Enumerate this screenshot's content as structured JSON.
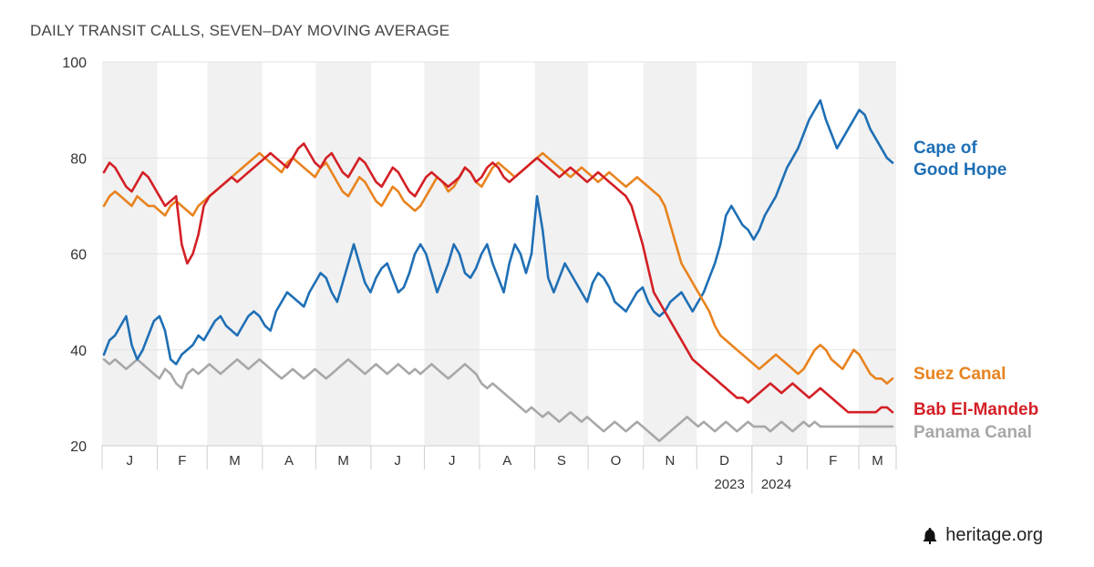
{
  "chart_data": {
    "type": "line",
    "title": "DAILY TRANSIT CALLS, SEVEN–DAY MOVING AVERAGE",
    "ylim": [
      20,
      100
    ],
    "yticks": [
      "100",
      "80",
      "60",
      "40",
      "20"
    ],
    "yticks_values": [
      100,
      80,
      60,
      40,
      20
    ],
    "months": [
      "J",
      "F",
      "M",
      "A",
      "M",
      "J",
      "J",
      "A",
      "S",
      "O",
      "N",
      "D",
      "J",
      "F",
      "M"
    ],
    "month_days": [
      31,
      28,
      31,
      30,
      31,
      30,
      31,
      31,
      30,
      31,
      30,
      31,
      31,
      29,
      21
    ],
    "year_labels": [
      "2023",
      "2024"
    ],
    "series": [
      {
        "name": "Cape of Good Hope",
        "label_lines": [
          "Cape of",
          "Good Hope"
        ],
        "color": "#1f6fb5",
        "values": [
          39,
          42,
          43,
          45,
          47,
          41,
          38,
          40,
          43,
          46,
          47,
          44,
          38,
          37,
          39,
          40,
          41,
          43,
          42,
          44,
          46,
          47,
          45,
          44,
          43,
          45,
          47,
          48,
          47,
          45,
          44,
          48,
          50,
          52,
          51,
          50,
          49,
          52,
          54,
          56,
          55,
          52,
          50,
          54,
          58,
          62,
          58,
          54,
          52,
          55,
          57,
          58,
          55,
          52,
          53,
          56,
          60,
          62,
          60,
          56,
          52,
          55,
          58,
          62,
          60,
          56,
          55,
          57,
          60,
          62,
          58,
          55,
          52,
          58,
          62,
          60,
          56,
          60,
          72,
          65,
          55,
          52,
          55,
          58,
          56,
          54,
          52,
          50,
          54,
          56,
          55,
          53,
          50,
          49,
          48,
          50,
          52,
          53,
          50,
          48,
          47,
          48,
          50,
          51,
          52,
          50,
          48,
          50,
          52,
          55,
          58,
          62,
          68,
          70,
          68,
          66,
          65,
          63,
          65,
          68,
          70,
          72,
          75,
          78,
          80,
          82,
          85,
          88,
          90,
          92,
          88,
          85,
          82,
          84,
          86,
          88,
          90,
          89,
          86,
          84,
          82,
          80,
          79
        ]
      },
      {
        "name": "Suez Canal",
        "label_lines": [
          "Suez Canal"
        ],
        "color": "#e8831f",
        "values": [
          70,
          72,
          73,
          72,
          71,
          70,
          72,
          71,
          70,
          70,
          69,
          68,
          70,
          71,
          70,
          69,
          68,
          70,
          71,
          72,
          73,
          74,
          75,
          76,
          77,
          78,
          79,
          80,
          81,
          80,
          79,
          78,
          77,
          79,
          80,
          79,
          78,
          77,
          76,
          78,
          79,
          77,
          75,
          73,
          72,
          74,
          76,
          75,
          73,
          71,
          70,
          72,
          74,
          73,
          71,
          70,
          69,
          70,
          72,
          74,
          76,
          75,
          73,
          74,
          76,
          78,
          77,
          75,
          74,
          76,
          78,
          79,
          78,
          77,
          76,
          77,
          78,
          79,
          80,
          81,
          80,
          79,
          78,
          77,
          76,
          77,
          78,
          77,
          76,
          75,
          76,
          77,
          76,
          75,
          74,
          75,
          76,
          75,
          74,
          73,
          72,
          70,
          66,
          62,
          58,
          56,
          54,
          52,
          50,
          48,
          45,
          43,
          42,
          41,
          40,
          39,
          38,
          37,
          36,
          37,
          38,
          39,
          38,
          37,
          36,
          35,
          36,
          38,
          40,
          41,
          40,
          38,
          37,
          36,
          38,
          40,
          39,
          37,
          35,
          34,
          34,
          33,
          34
        ]
      },
      {
        "name": "Bab El-Mandeb",
        "label_lines": [
          "Bab El-Mandeb"
        ],
        "color": "#d32026",
        "values": [
          77,
          79,
          78,
          76,
          74,
          73,
          75,
          77,
          76,
          74,
          72,
          70,
          71,
          72,
          62,
          58,
          60,
          64,
          70,
          72,
          73,
          74,
          75,
          76,
          75,
          76,
          77,
          78,
          79,
          80,
          81,
          80,
          79,
          78,
          80,
          82,
          83,
          81,
          79,
          78,
          80,
          81,
          79,
          77,
          76,
          78,
          80,
          79,
          77,
          75,
          74,
          76,
          78,
          77,
          75,
          73,
          72,
          74,
          76,
          77,
          76,
          75,
          74,
          75,
          76,
          78,
          77,
          75,
          76,
          78,
          79,
          78,
          76,
          75,
          76,
          77,
          78,
          79,
          80,
          79,
          78,
          77,
          76,
          77,
          78,
          77,
          76,
          75,
          76,
          77,
          76,
          75,
          74,
          73,
          72,
          70,
          66,
          62,
          57,
          52,
          50,
          48,
          46,
          44,
          42,
          40,
          38,
          37,
          36,
          35,
          34,
          33,
          32,
          31,
          30,
          30,
          29,
          30,
          31,
          32,
          33,
          32,
          31,
          32,
          33,
          32,
          31,
          30,
          31,
          32,
          31,
          30,
          29,
          28,
          27,
          27,
          27,
          27,
          27,
          27,
          28,
          28,
          27
        ]
      },
      {
        "name": "Panama Canal",
        "label_lines": [
          "Panama Canal"
        ],
        "color": "#a8a8a8",
        "values": [
          38,
          37,
          38,
          37,
          36,
          37,
          38,
          37,
          36,
          35,
          34,
          36,
          35,
          33,
          32,
          35,
          36,
          35,
          36,
          37,
          36,
          35,
          36,
          37,
          38,
          37,
          36,
          37,
          38,
          37,
          36,
          35,
          34,
          35,
          36,
          35,
          34,
          35,
          36,
          35,
          34,
          35,
          36,
          37,
          38,
          37,
          36,
          35,
          36,
          37,
          36,
          35,
          36,
          37,
          36,
          35,
          36,
          35,
          36,
          37,
          36,
          35,
          34,
          35,
          36,
          37,
          36,
          35,
          33,
          32,
          33,
          32,
          31,
          30,
          29,
          28,
          27,
          28,
          27,
          26,
          27,
          26,
          25,
          26,
          27,
          26,
          25,
          26,
          25,
          24,
          23,
          24,
          25,
          24,
          23,
          24,
          25,
          24,
          23,
          22,
          21,
          22,
          23,
          24,
          25,
          26,
          25,
          24,
          25,
          24,
          23,
          24,
          25,
          24,
          23,
          24,
          25,
          24,
          24,
          24,
          23,
          24,
          25,
          24,
          23,
          24,
          25,
          24,
          25,
          24,
          24,
          24,
          24,
          24,
          24,
          24,
          24,
          24,
          24,
          24,
          24,
          24,
          24
        ]
      }
    ]
  },
  "footer": {
    "site": "heritage.org",
    "logo_icon": "liberty-bell-icon"
  }
}
